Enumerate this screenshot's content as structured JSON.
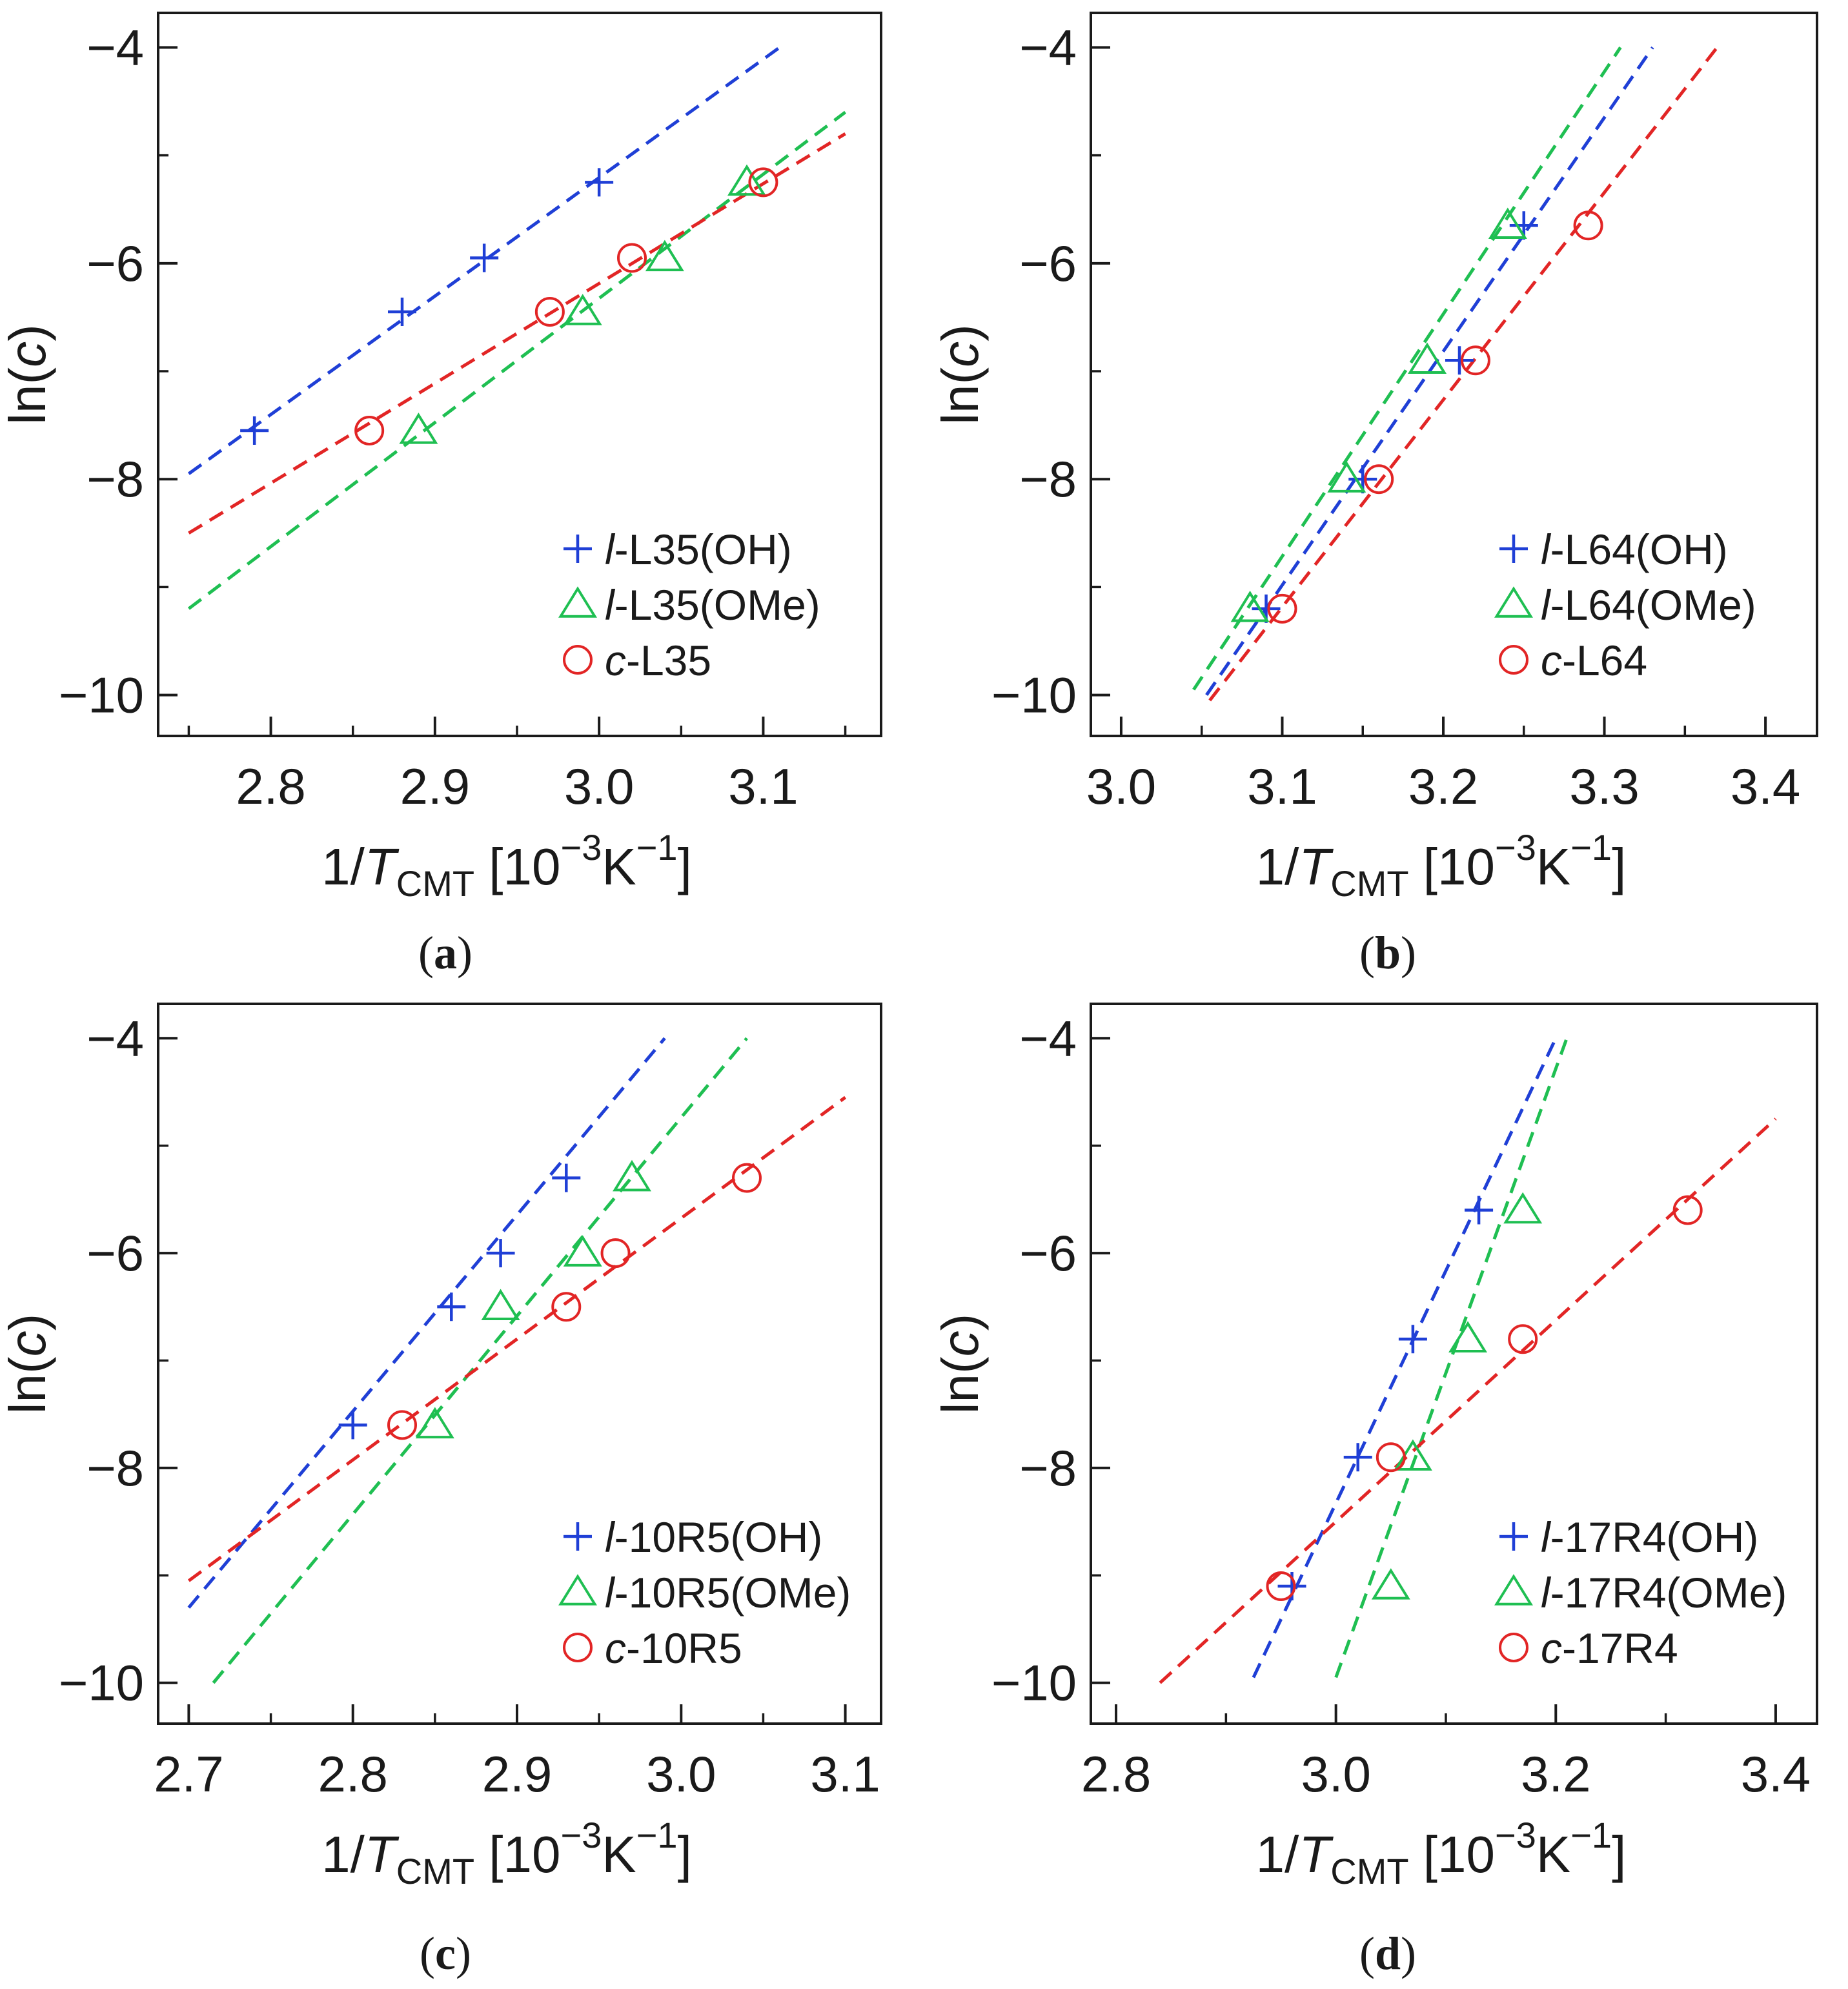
{
  "colors": {
    "OH": "#1f3fd6",
    "OMe": "#1fbf52",
    "c": "#e22525",
    "axis": "#1a1a1a"
  },
  "chart_data": [
    {
      "panel": "a",
      "type": "scatter",
      "ylabel": "ln(c)",
      "xlabel": "1/T_CMT [10^-3 K^-1]",
      "xlim": [
        2.74,
        3.16
      ],
      "ylim": [
        -10.2,
        -3.8
      ],
      "xticks": [
        "2.8",
        "2.9",
        "3.0",
        "3.1"
      ],
      "xtick_values": [
        2.8,
        2.9,
        3.0,
        3.1
      ],
      "yticks": [
        "−4",
        "−6",
        "−8",
        "−10"
      ],
      "ytick_values": [
        -4,
        -6,
        -8,
        -10
      ],
      "legend_position": "bottom-right",
      "series": [
        {
          "name": "l-L35(OH)",
          "prefix": "l",
          "suffix": "-L35(OH)",
          "marker": "plus",
          "color_key": "OH",
          "x": [
            2.79,
            2.88,
            2.93,
            3.0
          ],
          "y": [
            -7.55,
            -6.45,
            -5.95,
            -5.25
          ],
          "fit": {
            "x": [
              2.75,
              3.11
            ],
            "y": [
              -7.95,
              -4.0
            ]
          }
        },
        {
          "name": "l-L35(OMe)",
          "prefix": "l",
          "suffix": "-L35(OMe)",
          "marker": "triangle",
          "color_key": "OMe",
          "x": [
            2.89,
            2.99,
            3.04,
            3.09
          ],
          "y": [
            -7.55,
            -6.45,
            -5.95,
            -5.25
          ],
          "fit": {
            "x": [
              2.75,
              3.15
            ],
            "y": [
              -9.2,
              -4.6
            ]
          }
        },
        {
          "name": "c-L35",
          "prefix": "c",
          "suffix": "-L35",
          "marker": "circle",
          "color_key": "c",
          "x": [
            2.86,
            2.97,
            3.02,
            3.1
          ],
          "y": [
            -7.55,
            -6.45,
            -5.95,
            -5.25
          ],
          "fit": {
            "x": [
              2.75,
              3.15
            ],
            "y": [
              -8.5,
              -4.8
            ]
          }
        }
      ]
    },
    {
      "panel": "b",
      "type": "scatter",
      "ylabel": "ln(c)",
      "xlabel": "1/T_CMT [10^-3 K^-1]",
      "xlim": [
        2.99,
        3.42
      ],
      "ylim": [
        -10.2,
        -3.8
      ],
      "xticks": [
        "3.0",
        "3.1",
        "3.2",
        "3.3",
        "3.4"
      ],
      "xtick_values": [
        3.0,
        3.1,
        3.2,
        3.3,
        3.4
      ],
      "yticks": [
        "−4",
        "−6",
        "−8",
        "−10"
      ],
      "ytick_values": [
        -4,
        -6,
        -8,
        -10
      ],
      "legend_position": "bottom-right",
      "series": [
        {
          "name": "l-L64(OH)",
          "prefix": "l",
          "suffix": "-L64(OH)",
          "marker": "plus",
          "color_key": "OH",
          "x": [
            3.09,
            3.15,
            3.21,
            3.25
          ],
          "y": [
            -9.2,
            -8.0,
            -6.9,
            -5.65
          ],
          "fit": {
            "x": [
              3.053,
              3.33
            ],
            "y": [
              -10.0,
              -4.0
            ]
          }
        },
        {
          "name": "l-L64(OMe)",
          "prefix": "l",
          "suffix": "-L64(OMe)",
          "marker": "triangle",
          "color_key": "OMe",
          "x": [
            3.08,
            3.14,
            3.19,
            3.24
          ],
          "y": [
            -9.2,
            -8.0,
            -6.9,
            -5.65
          ],
          "fit": {
            "x": [
              3.045,
              3.31
            ],
            "y": [
              -9.95,
              -4.0
            ]
          }
        },
        {
          "name": "c-L64",
          "prefix": "c",
          "suffix": "-L64",
          "marker": "circle",
          "color_key": "c",
          "x": [
            3.1,
            3.16,
            3.22,
            3.29
          ],
          "y": [
            -9.2,
            -8.0,
            -6.9,
            -5.65
          ],
          "fit": {
            "x": [
              3.055,
              3.37
            ],
            "y": [
              -10.05,
              -4.0
            ]
          }
        }
      ]
    },
    {
      "panel": "c",
      "type": "scatter",
      "ylabel": "ln(c)",
      "xlabel": "1/T_CMT [10^-3 K^-1]",
      "xlim": [
        2.69,
        3.11
      ],
      "ylim": [
        -10.2,
        -3.8
      ],
      "xticks": [
        "2.7",
        "2.8",
        "2.9",
        "3.0",
        "3.1"
      ],
      "xtick_values": [
        2.7,
        2.8,
        2.9,
        3.0,
        3.1
      ],
      "yticks": [
        "−4",
        "−6",
        "−8",
        "−10"
      ],
      "ytick_values": [
        -4,
        -6,
        -8,
        -10
      ],
      "legend_position": "bottom-right",
      "series": [
        {
          "name": "l-10R5(OH)",
          "prefix": "l",
          "suffix": "-10R5(OH)",
          "marker": "plus",
          "color_key": "OH",
          "x": [
            2.8,
            2.86,
            2.89,
            2.93
          ],
          "y": [
            -7.6,
            -6.5,
            -6.0,
            -5.3
          ],
          "fit": {
            "x": [
              2.7,
              2.99
            ],
            "y": [
              -9.3,
              -4.0
            ]
          }
        },
        {
          "name": "l-10R5(OMe)",
          "prefix": "l",
          "suffix": "-10R5(OMe)",
          "marker": "triangle",
          "color_key": "OMe",
          "x": [
            2.85,
            2.89,
            2.94,
            2.97
          ],
          "y": [
            -7.6,
            -6.5,
            -6.0,
            -5.3
          ],
          "fit": {
            "x": [
              2.715,
              3.04
            ],
            "y": [
              -10.0,
              -4.0
            ]
          }
        },
        {
          "name": "c-10R5",
          "prefix": "c",
          "suffix": "-10R5",
          "marker": "circle",
          "color_key": "c",
          "x": [
            2.83,
            2.93,
            2.96,
            3.04
          ],
          "y": [
            -7.6,
            -6.5,
            -6.0,
            -5.3
          ],
          "fit": {
            "x": [
              2.7,
              3.1
            ],
            "y": [
              -9.05,
              -4.55
            ]
          }
        }
      ]
    },
    {
      "panel": "d",
      "type": "scatter",
      "ylabel": "ln(c)",
      "xlabel": "1/T_CMT [10^-3 K^-1]",
      "xlim": [
        2.79,
        3.42
      ],
      "ylim": [
        -10.2,
        -3.8
      ],
      "xticks": [
        "2.8",
        "3.0",
        "3.2",
        "3.4"
      ],
      "xtick_values": [
        2.8,
        3.0,
        3.2,
        3.4
      ],
      "yticks": [
        "−4",
        "−6",
        "−8",
        "−10"
      ],
      "ytick_values": [
        -4,
        -6,
        -8,
        -10
      ],
      "legend_position": "bottom-right",
      "series": [
        {
          "name": "l-17R4(OH)",
          "prefix": "l",
          "suffix": "-17R4(OH)",
          "marker": "plus",
          "color_key": "OH",
          "x": [
            2.96,
            3.02,
            3.07,
            3.13
          ],
          "y": [
            -9.1,
            -7.9,
            -6.8,
            -5.6
          ],
          "fit": {
            "x": [
              2.925,
              3.2
            ],
            "y": [
              -9.95,
              -4.0
            ]
          }
        },
        {
          "name": "l-17R4(OMe)",
          "prefix": "l",
          "suffix": "-17R4(OMe)",
          "marker": "triangle",
          "color_key": "OMe",
          "x": [
            3.05,
            3.07,
            3.12,
            3.17
          ],
          "y": [
            -9.1,
            -7.9,
            -6.8,
            -5.6
          ],
          "fit": {
            "x": [
              3.0,
              3.21
            ],
            "y": [
              -9.95,
              -4.0
            ]
          }
        },
        {
          "name": "c-17R4",
          "prefix": "c",
          "suffix": "-17R4",
          "marker": "circle",
          "color_key": "c",
          "x": [
            2.95,
            3.05,
            3.17,
            3.32
          ],
          "y": [
            -9.1,
            -7.9,
            -6.8,
            -5.6
          ],
          "fit": {
            "x": [
              2.84,
              3.4
            ],
            "y": [
              -10.0,
              -4.75
            ]
          }
        }
      ]
    }
  ],
  "panel_labels": [
    "(a)",
    "(b)",
    "(c)",
    "(d)"
  ]
}
